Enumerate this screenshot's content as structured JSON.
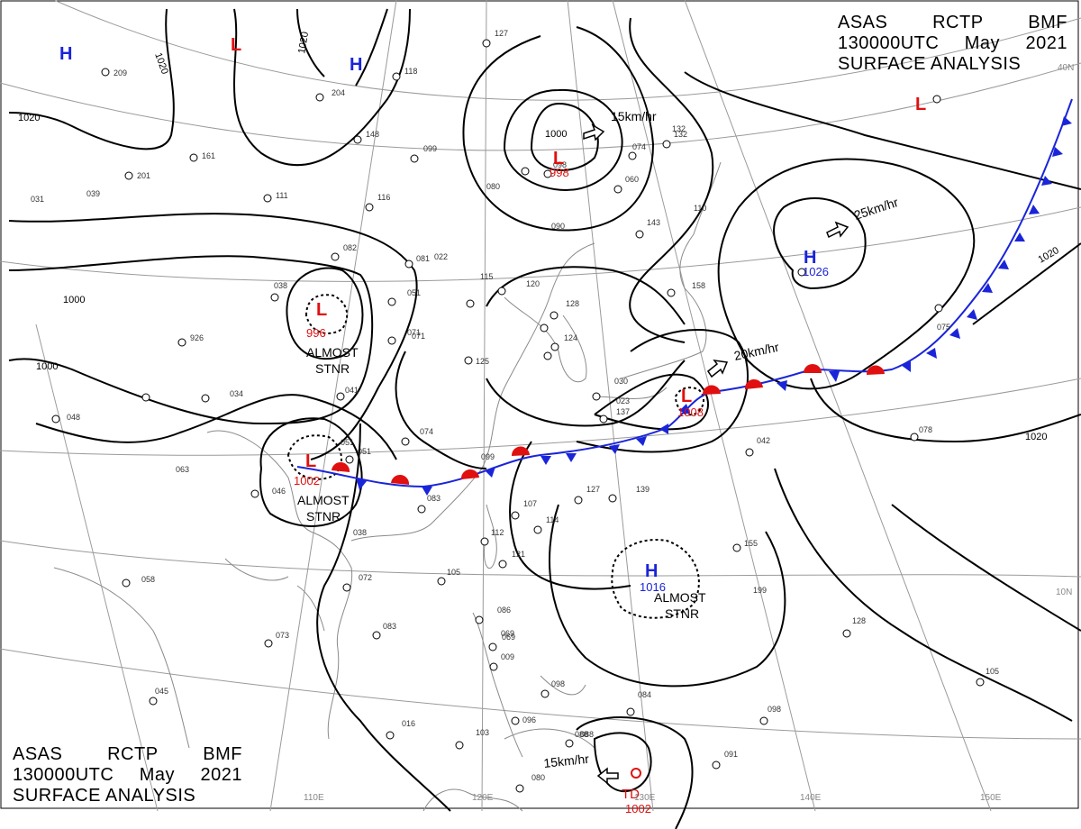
{
  "header": {
    "line1": [
      "ASAS",
      "RCTP",
      "BMF"
    ],
    "line2": [
      "130000UTC",
      "May",
      "2021"
    ],
    "line3": "SURFACE ANALYSIS"
  },
  "colors": {
    "high": "#1a24d9",
    "low": "#e01010",
    "isobar": "#000000",
    "coast": "#8a8a8a",
    "grid": "#9a9a9a"
  },
  "isobar_labels": [
    "1020",
    "1020",
    "1020",
    "1000",
    "1000",
    "1000",
    "1020",
    "1020"
  ],
  "pressure_centers": [
    {
      "type": "H",
      "value": ""
    },
    {
      "type": "L",
      "value": ""
    },
    {
      "type": "H",
      "value": ""
    },
    {
      "type": "L",
      "value": "998"
    },
    {
      "type": "H",
      "value": "1026"
    },
    {
      "type": "L",
      "value": "996"
    },
    {
      "type": "L",
      "value": "1002"
    },
    {
      "type": "L",
      "value": "1008"
    },
    {
      "type": "H",
      "value": "1016"
    },
    {
      "type": "L",
      "value": ""
    },
    {
      "type": "TD",
      "value": "1002"
    }
  ],
  "notes": [
    "ALMOST",
    "STNR",
    "ALMOST",
    "STNR",
    "ALMOST",
    "STNR"
  ],
  "motion_labels": [
    "15km/hr",
    "25km/hr",
    "20km/hr",
    "15km/hr"
  ],
  "lat_labels": [
    "40N",
    "10N"
  ],
  "lon_labels": [
    "110E",
    "120E",
    "130E",
    "140E",
    "150E"
  ],
  "station_labels": [
    "209",
    "201",
    "161",
    "204",
    "148",
    "118",
    "127",
    "099",
    "111",
    "116",
    "080",
    "098",
    "060",
    "074",
    "132",
    "143",
    "082",
    "081",
    "038",
    "051",
    "115",
    "120",
    "128",
    "158",
    "926",
    "034",
    "041",
    "071",
    "125",
    "124",
    "048",
    "063",
    "074",
    "051",
    "046",
    "099",
    "083",
    "127",
    "107",
    "114",
    "139",
    "137",
    "155",
    "199",
    "112",
    "121",
    "105",
    "072",
    "058",
    "073",
    "083",
    "086",
    "069",
    "098",
    "096",
    "088",
    "084",
    "098",
    "091",
    "128",
    "105",
    "090",
    "103",
    "045",
    "016",
    "088",
    "080",
    "051",
    "071",
    "022",
    "069",
    "009",
    "030",
    "075",
    "110",
    "132",
    "023",
    "078",
    "042",
    "039",
    "031",
    "038"
  ]
}
